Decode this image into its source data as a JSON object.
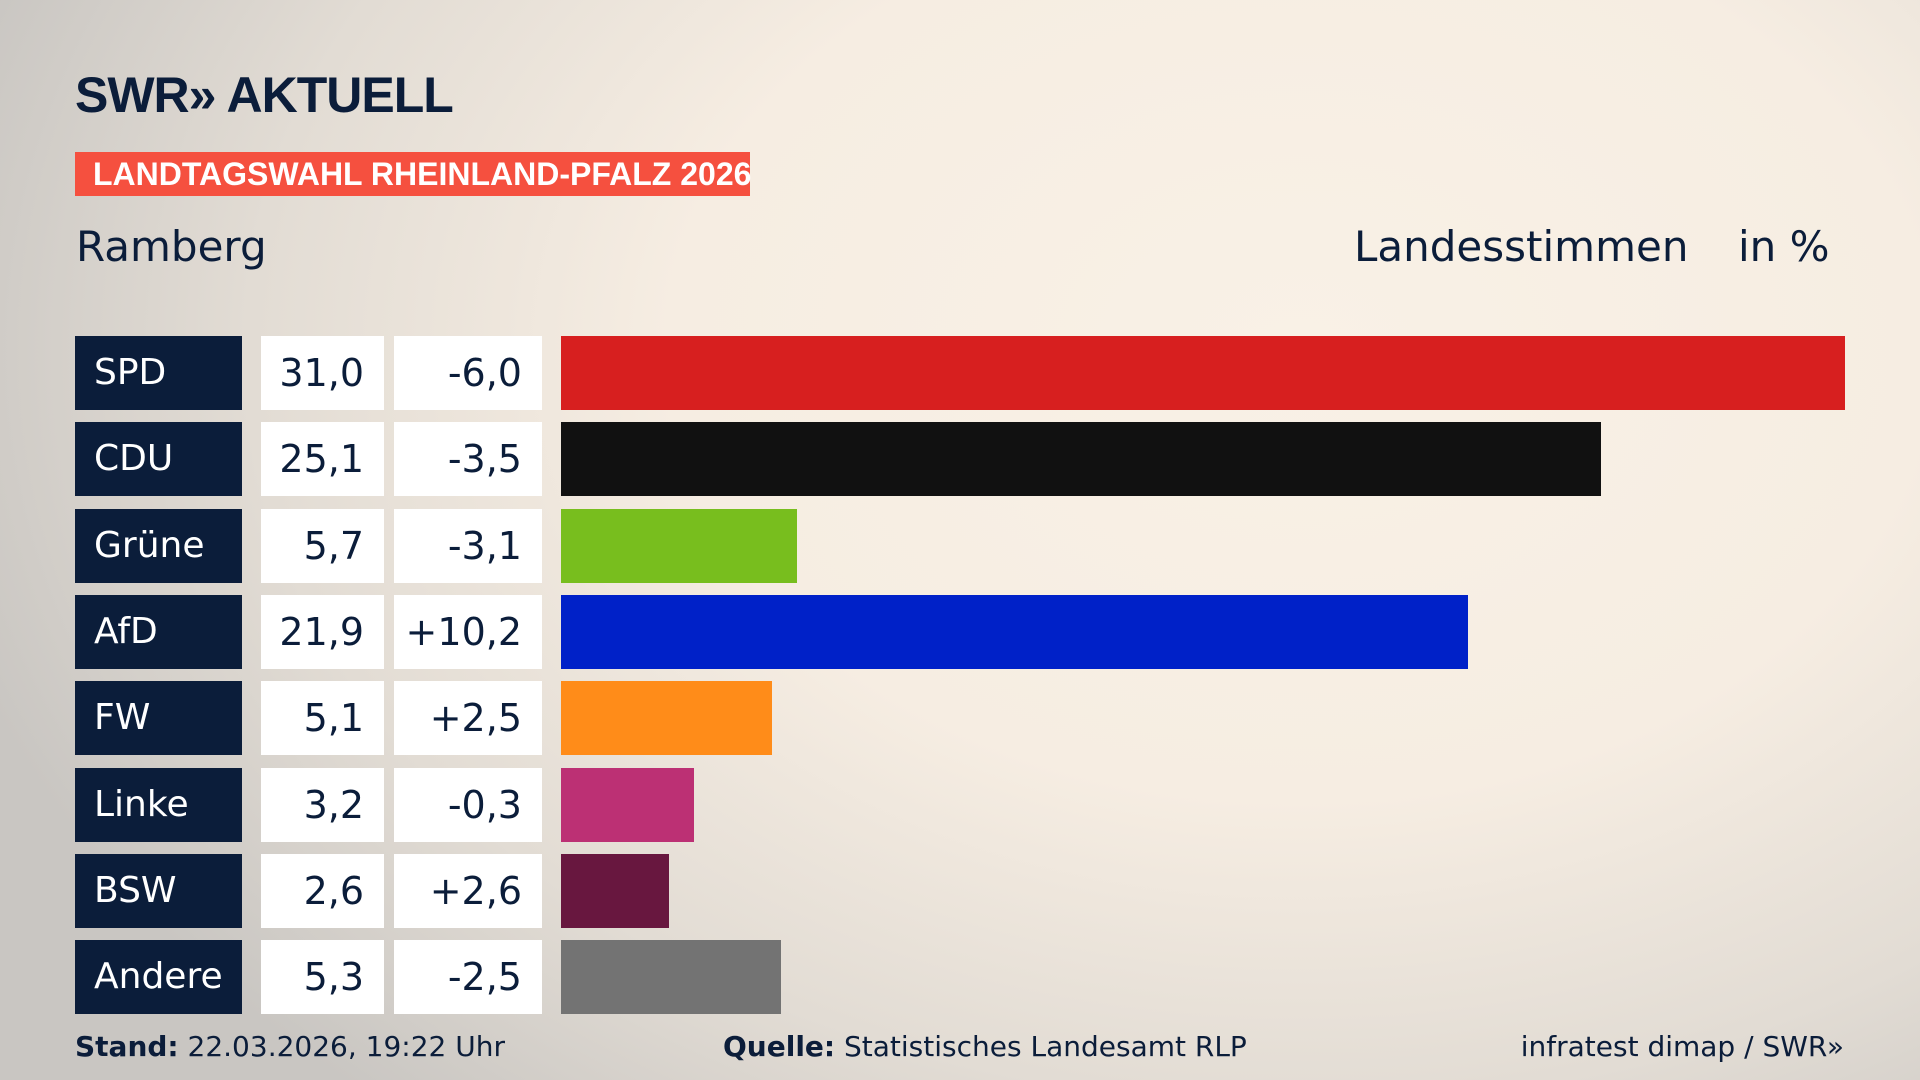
{
  "header": {
    "logo": "SWR» AKTUELL",
    "banner": "LANDTAGSWAHL RHEINLAND-PFALZ 2026",
    "location": "Ramberg",
    "vote_type": "Landesstimmen",
    "unit": "in %"
  },
  "chart_data": {
    "type": "bar",
    "orientation": "horizontal",
    "xlim": [
      0,
      31.0
    ],
    "categories": [
      "SPD",
      "CDU",
      "Grüne",
      "AfD",
      "FW",
      "Linke",
      "BSW",
      "Andere"
    ],
    "values": [
      31.0,
      25.1,
      5.7,
      21.9,
      5.1,
      3.2,
      2.6,
      5.3
    ],
    "value_labels": [
      "31,0",
      "25,1",
      "5,7",
      "21,9",
      "5,1",
      "3,2",
      "2,6",
      "5,3"
    ],
    "diff_labels": [
      "-6,0",
      "-3,5",
      "-3,1",
      "+10,2",
      "+2,5",
      "-0,3",
      "+2,6",
      "-2,5"
    ],
    "diffs": [
      -6.0,
      -3.5,
      -3.1,
      10.2,
      2.5,
      -0.3,
      2.6,
      -2.5
    ],
    "colors": [
      "#d71f1f",
      "#111111",
      "#78be1e",
      "#0021c8",
      "#ff8c19",
      "#bc3074",
      "#68173f",
      "#737373"
    ]
  },
  "footer": {
    "stand_label": "Stand:",
    "stand_value": "22.03.2026, 19:22 Uhr",
    "source_label": "Quelle:",
    "source_value": "Statistisches Landesamt RLP",
    "credit": "infratest dimap / SWR»"
  }
}
